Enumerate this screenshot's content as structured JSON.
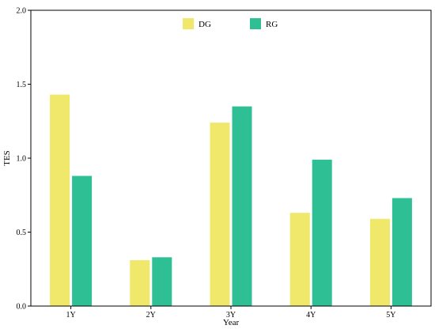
{
  "chart_data": {
    "type": "bar",
    "title": "",
    "xlabel": "Year",
    "ylabel": "TES",
    "categories": [
      "1Y",
      "2Y",
      "3Y",
      "4Y",
      "5Y"
    ],
    "series": [
      {
        "name": "DG",
        "values": [
          1.43,
          0.31,
          1.24,
          0.63,
          0.59
        ],
        "color": "#f0e86a"
      },
      {
        "name": "RG",
        "values": [
          0.88,
          0.33,
          1.35,
          0.99,
          0.73
        ],
        "color": "#2fbf94"
      }
    ],
    "ylim": [
      0,
      2.0
    ],
    "yticks": [
      "0.0",
      "0.5",
      "1.0",
      "1.5",
      "2.0"
    ],
    "grid": false,
    "legend": "top-center"
  }
}
